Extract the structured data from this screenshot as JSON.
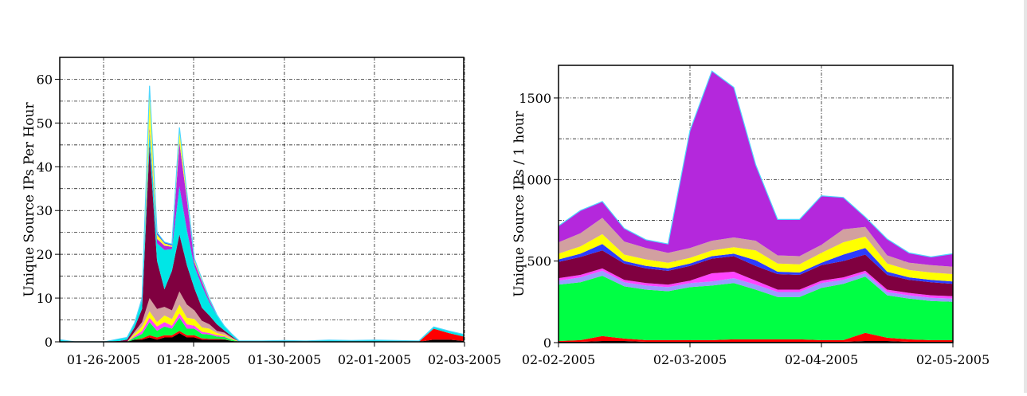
{
  "chart_data": [
    {
      "type": "area",
      "stacked": true,
      "ylabel": "Unique Source IPs Per Hour",
      "xlabel": "",
      "ylim": [
        0,
        65
      ],
      "yticks": [
        0,
        10,
        20,
        30,
        40,
        50,
        60
      ],
      "x_axis": {
        "type": "date",
        "range": [
          "2005-01-25T00:00",
          "2005-02-03T00:00"
        ]
      },
      "xtick_labels": [
        "01-26-2005",
        "01-28-2005",
        "01-30-2005",
        "02-01-2005",
        "02-03-2005"
      ],
      "grid": true,
      "x": [
        "2005-01-25T00:00",
        "2005-01-25T08:00",
        "2005-01-25T16:00",
        "2005-01-26T00:00",
        "2005-01-26T08:00",
        "2005-01-26T12:00",
        "2005-01-26T16:00",
        "2005-01-26T20:00",
        "2005-01-27T00:00",
        "2005-01-27T04:00",
        "2005-01-27T08:00",
        "2005-01-27T12:00",
        "2005-01-27T16:00",
        "2005-01-27T20:00",
        "2005-01-28T00:00",
        "2005-01-28T04:00",
        "2005-01-28T08:00",
        "2005-01-28T12:00",
        "2005-01-28T16:00",
        "2005-01-28T20:00",
        "2005-01-29T00:00",
        "2005-01-29T12:00",
        "2005-01-30T00:00",
        "2005-01-30T12:00",
        "2005-01-31T00:00",
        "2005-01-31T12:00",
        "2005-02-01T00:00",
        "2005-02-01T12:00",
        "2005-02-02T00:00",
        "2005-02-02T08:00",
        "2005-02-02T16:00",
        "2005-02-03T00:00"
      ],
      "series": [
        {
          "color": "#000000",
          "values": [
            0,
            0,
            0,
            0,
            0,
            0,
            0.5,
            0.5,
            1,
            0.5,
            1,
            1,
            2,
            1,
            1,
            0.5,
            0.5,
            0.5,
            0.5,
            0.2,
            0,
            0,
            0,
            0,
            0,
            0,
            0,
            0,
            0,
            0.5,
            0.5,
            0.2
          ]
        },
        {
          "color": "#ff0000",
          "values": [
            0,
            0,
            0,
            0,
            0,
            0,
            0,
            0.3,
            0.5,
            0.5,
            0.5,
            0.5,
            0.5,
            0.5,
            0.5,
            0.3,
            0.2,
            0.2,
            0.1,
            0,
            0,
            0,
            0,
            0,
            0,
            0,
            0,
            0,
            0,
            2.5,
            1.5,
            1
          ]
        },
        {
          "color": "#00ff44",
          "values": [
            0,
            0,
            0,
            0,
            0,
            0,
            0.5,
            1,
            3,
            1.5,
            2,
            1.5,
            3,
            1.5,
            1.5,
            1,
            1,
            0.5,
            0.5,
            0.3,
            0,
            0,
            0,
            0,
            0,
            0,
            0,
            0,
            0,
            0,
            0,
            0
          ]
        },
        {
          "color": "#ff44ff",
          "values": [
            0,
            0,
            0,
            0,
            0,
            0,
            0.3,
            0.7,
            1,
            1,
            1,
            0.7,
            1,
            1,
            0.7,
            0.5,
            0.3,
            0.3,
            0.2,
            0,
            0,
            0,
            0,
            0,
            0,
            0,
            0,
            0,
            0,
            0,
            0,
            0
          ]
        },
        {
          "color": "#ffff00",
          "values": [
            0,
            0,
            0,
            0,
            0,
            0,
            0.5,
            1,
            1.5,
            1,
            1.5,
            1.5,
            2,
            1.5,
            1.5,
            1,
            1,
            0.5,
            0.3,
            0.2,
            0,
            0,
            0,
            0,
            0,
            0,
            0,
            0,
            0,
            0,
            0,
            0
          ]
        },
        {
          "color": "#d2a0a0",
          "values": [
            0,
            0,
            0,
            0,
            0,
            0,
            0.5,
            1,
            3,
            3,
            2,
            2,
            3,
            3,
            2,
            1.5,
            1,
            0.5,
            0.5,
            0.3,
            0,
            0,
            0,
            0,
            0,
            0,
            0,
            0,
            0,
            0,
            0,
            0
          ]
        },
        {
          "color": "#800040",
          "values": [
            0,
            0,
            0,
            0,
            0.2,
            0.5,
            1,
            3,
            35,
            11,
            4,
            9,
            13,
            9,
            5,
            3,
            2,
            1.5,
            0.5,
            0.3,
            0,
            0,
            0,
            0,
            0,
            0,
            0,
            0,
            0,
            0,
            0,
            0
          ]
        },
        {
          "color": "#00e6e6",
          "values": [
            0.5,
            0,
            0,
            0,
            0.5,
            0.5,
            1,
            2,
            3,
            4,
            9,
            5,
            11,
            8,
            5,
            5,
            3,
            2,
            1,
            0.5,
            0.2,
            0.2,
            0.3,
            0.2,
            0.4,
            0.3,
            0.4,
            0.3,
            0.2,
            0.4,
            0.5,
            0.5
          ]
        },
        {
          "color": "#b428dc",
          "values": [
            0,
            0,
            0,
            0,
            0,
            0,
            0,
            0.3,
            1,
            1,
            1,
            0.5,
            10,
            7,
            1,
            1,
            0.5,
            0.2,
            0,
            0,
            0,
            0,
            0,
            0,
            0,
            0,
            0,
            0,
            0,
            0,
            0,
            0
          ]
        },
        {
          "color": "#ffff33",
          "values": [
            0,
            0,
            0,
            0,
            0,
            0,
            0,
            0,
            9,
            1,
            0.5,
            0.3,
            3,
            1,
            0.5,
            0.3,
            0.2,
            0,
            0,
            0,
            0,
            0,
            0,
            0,
            0,
            0,
            0,
            0,
            0,
            0,
            0,
            0
          ]
        },
        {
          "color": "#2c3cff",
          "values": [
            0,
            0,
            0,
            0,
            0,
            0,
            0,
            0.2,
            0.5,
            0.5,
            0.3,
            0.3,
            0.5,
            0.5,
            0.3,
            0.2,
            0.2,
            0,
            0,
            0,
            0,
            0,
            0,
            0,
            0,
            0,
            0,
            0,
            0,
            0,
            0,
            0
          ]
        }
      ]
    },
    {
      "type": "area",
      "stacked": true,
      "ylabel": "Unique Source IPs / 1 hour",
      "xlabel": "",
      "ylim": [
        0,
        1700
      ],
      "yticks": [
        0,
        500,
        1000,
        1500
      ],
      "x_axis": {
        "type": "date",
        "range": [
          "2005-02-02T00:00",
          "2005-02-05T00:00"
        ]
      },
      "xtick_labels": [
        "02-02-2005",
        "02-03-2005",
        "02-04-2005",
        "02-05-2005"
      ],
      "grid": true,
      "x": [
        "2005-02-02T00:00",
        "2005-02-02T04:00",
        "2005-02-02T08:00",
        "2005-02-02T12:00",
        "2005-02-02T16:00",
        "2005-02-02T20:00",
        "2005-02-03T00:00",
        "2005-02-03T04:00",
        "2005-02-03T08:00",
        "2005-02-03T12:00",
        "2005-02-03T16:00",
        "2005-02-03T20:00",
        "2005-02-04T00:00",
        "2005-02-04T04:00",
        "2005-02-04T08:00",
        "2005-02-04T12:00",
        "2005-02-04T16:00",
        "2005-02-04T20:00",
        "2005-02-05T00:00"
      ],
      "series": [
        {
          "color": "#000000",
          "values": [
            5,
            5,
            10,
            10,
            5,
            5,
            5,
            5,
            5,
            5,
            5,
            5,
            5,
            5,
            10,
            10,
            5,
            5,
            5
          ]
        },
        {
          "color": "#ff0000",
          "values": [
            5,
            10,
            30,
            15,
            10,
            10,
            10,
            10,
            15,
            15,
            15,
            15,
            10,
            10,
            50,
            20,
            15,
            10,
            10
          ]
        },
        {
          "color": "#00ff44",
          "values": [
            345,
            355,
            370,
            320,
            310,
            300,
            325,
            335,
            345,
            305,
            260,
            260,
            320,
            345,
            345,
            260,
            250,
            240,
            235
          ]
        },
        {
          "color": "#9b9bff",
          "values": [
            25,
            30,
            30,
            25,
            25,
            25,
            25,
            25,
            30,
            30,
            30,
            30,
            30,
            25,
            20,
            20,
            20,
            20,
            20
          ]
        },
        {
          "color": "#ff44ff",
          "values": [
            15,
            15,
            15,
            15,
            15,
            15,
            15,
            50,
            40,
            25,
            15,
            15,
            15,
            15,
            15,
            15,
            15,
            15,
            15
          ]
        },
        {
          "color": "#800040",
          "values": [
            100,
            110,
            110,
            100,
            90,
            85,
            90,
            90,
            95,
            90,
            95,
            90,
            95,
            100,
            100,
            90,
            80,
            80,
            75
          ]
        },
        {
          "color": "#2c3cff",
          "values": [
            15,
            20,
            40,
            15,
            15,
            15,
            15,
            15,
            15,
            35,
            15,
            15,
            15,
            40,
            40,
            20,
            15,
            15,
            15
          ]
        },
        {
          "color": "#ffff00",
          "values": [
            35,
            45,
            60,
            40,
            40,
            35,
            35,
            35,
            40,
            60,
            50,
            50,
            60,
            75,
            70,
            50,
            45,
            45,
            45
          ]
        },
        {
          "color": "#d2a0a0",
          "values": [
            70,
            80,
            100,
            80,
            70,
            60,
            60,
            60,
            60,
            60,
            50,
            50,
            50,
            80,
            60,
            50,
            45,
            45,
            45
          ]
        },
        {
          "color": "#b428dc",
          "values": [
            100,
            140,
            100,
            80,
            50,
            55,
            720,
            1040,
            920,
            465,
            220,
            225,
            300,
            195,
            60,
            100,
            60,
            50,
            80
          ]
        }
      ]
    }
  ]
}
